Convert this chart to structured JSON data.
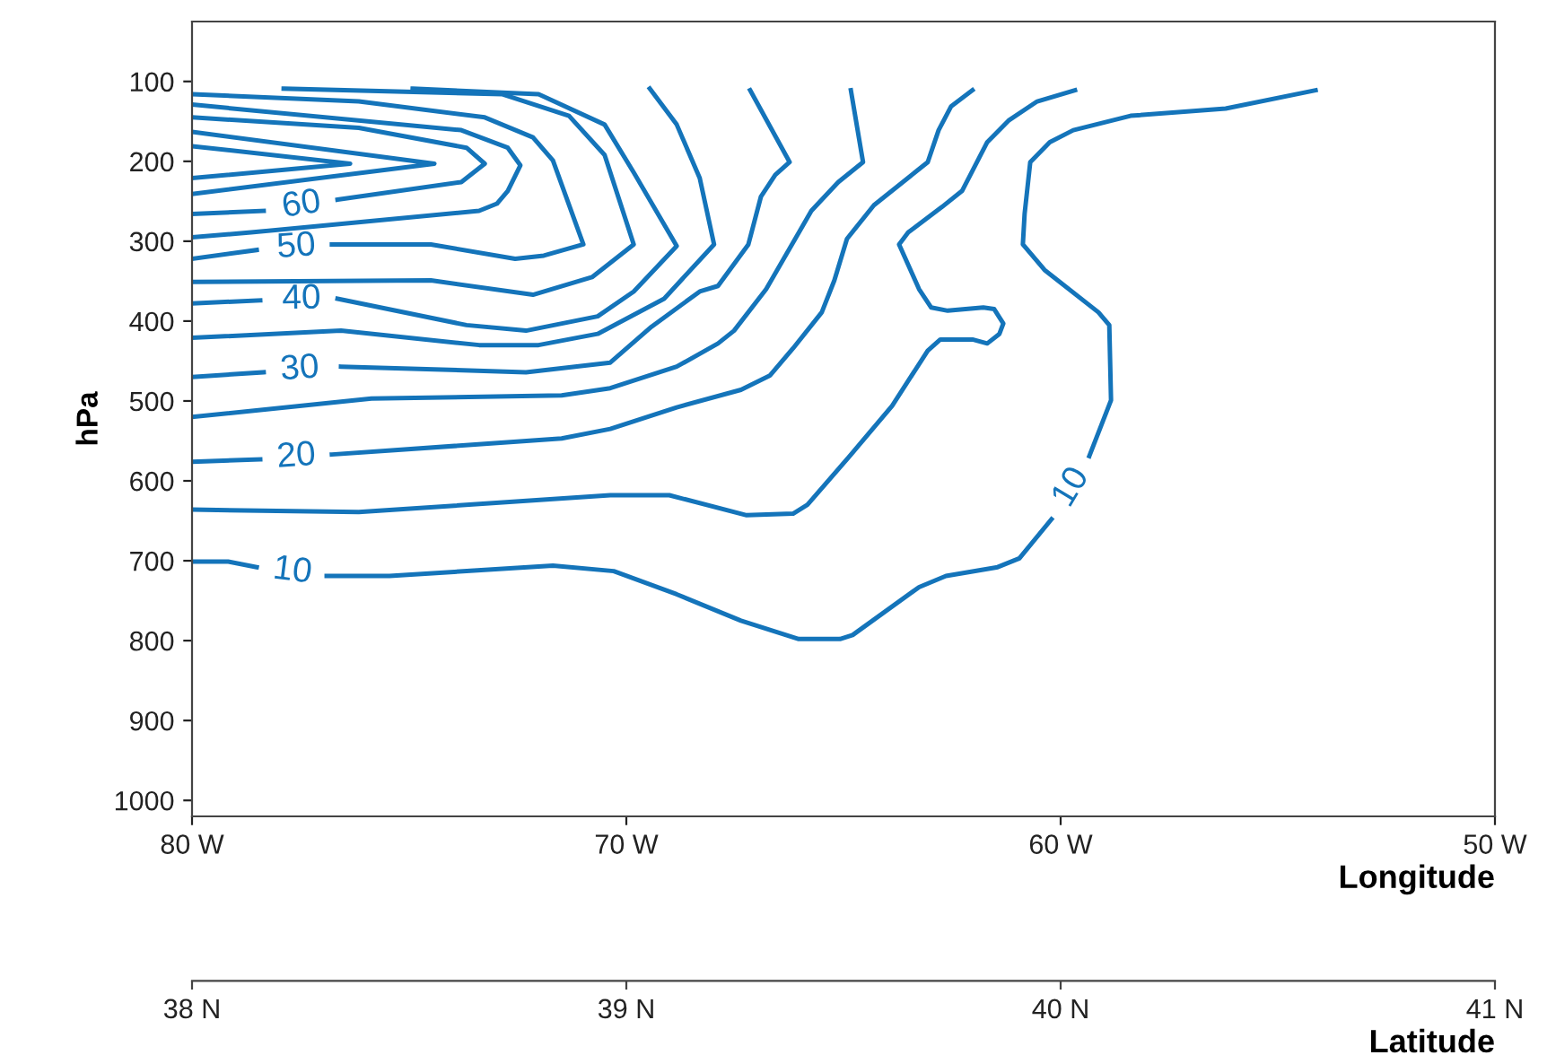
{
  "chart_data": {
    "type": "line",
    "xlabel": "Longitude",
    "ylabel": "hPa",
    "x2label": "Latitude",
    "xlim": [
      80,
      50
    ],
    "xticks": [
      {
        "value": 80,
        "label": "80 W"
      },
      {
        "value": 70,
        "label": "70 W"
      },
      {
        "value": 60,
        "label": "60 W"
      },
      {
        "value": 50,
        "label": "50 W"
      }
    ],
    "x2lim": [
      38,
      41
    ],
    "x2ticks": [
      {
        "value": 38,
        "label": "38 N"
      },
      {
        "value": 39,
        "label": "39 N"
      },
      {
        "value": 40,
        "label": "40 N"
      },
      {
        "value": 41,
        "label": "41 N"
      }
    ],
    "ylim": [
      1020,
      25
    ],
    "yticks": [
      100,
      200,
      300,
      400,
      500,
      600,
      700,
      800,
      900,
      1000
    ],
    "grid": false,
    "marker": "none",
    "line_style": "solid",
    "series": [
      {
        "color": "#1474ba",
        "x": [
          80,
          76.36,
          80
        ],
        "values": [
          181,
          203,
          221
        ]
      },
      {
        "color": "#1474ba",
        "x": [
          80,
          74.42,
          80
        ],
        "values": [
          163,
          203,
          241
        ]
      },
      {
        "color": "#1474ba",
        "x": [
          80,
          76.16,
          73.68,
          73.26,
          73.8,
          76.65,
          77.48,
          78.35,
          80
        ],
        "values": [
          145,
          158,
          183,
          203,
          226,
          248,
          null,
          262,
          266
        ]
      },
      {
        "color": "#1474ba",
        "x": [
          80,
          73.8,
          72.73,
          72.44,
          72.73,
          72.98,
          73.39,
          78.64,
          80
        ],
        "values": [
          129,
          161,
          183,
          205,
          237,
          253,
          262,
          289,
          295
        ]
      },
      {
        "color": "#1474ba",
        "x": [
          80,
          76.16,
          73.26,
          72.15,
          71.69,
          70.99,
          71.9,
          72.56,
          74.5,
          76.78,
          77.6,
          78.51,
          80
        ],
        "values": [
          116,
          125,
          145,
          170,
          199,
          304,
          318,
          322,
          304,
          304,
          null,
          311,
          322
        ]
      },
      {
        "color": "#1474ba",
        "x": [
          77.89,
          72.85,
          71.32,
          70.5,
          69.83,
          70.79,
          72.15,
          74.5,
          80
        ],
        "values": [
          109,
          116,
          143,
          192,
          304,
          345,
          367,
          349,
          351
        ]
      },
      {
        "color": "#1474ba",
        "x": [
          74.92,
          72.02,
          70.5,
          69.83,
          68.84,
          69.83,
          70.66,
          72.31,
          73.68,
          76.65,
          77.48,
          78.43,
          80
        ],
        "values": [
          109,
          116,
          154,
          214,
          306,
          363,
          394,
          412,
          405,
          372,
          null,
          374,
          378
        ]
      },
      {
        "color": "#1474ba",
        "x": [
          69.46,
          68.84,
          68.31,
          67.98,
          69.13,
          70.66,
          72.02,
          73.39,
          76.57,
          80
        ],
        "values": [
          109,
          154,
          221,
          304,
          372,
          416,
          430,
          430,
          412,
          421
        ]
      },
      {
        "color": "#1474ba",
        "x": [
          67.15,
          66.24,
          66.57,
          66.9,
          67.19,
          67.89,
          68.31,
          69.42,
          70.37,
          72.31,
          76.57,
          77.52,
          78.35,
          80
        ],
        "values": [
          111,
          201,
          217,
          244,
          304,
          356,
          363,
          407,
          452,
          464,
          457,
          null,
          464,
          470
        ]
      },
      {
        "color": "#1474ba",
        "x": [
          64.83,
          64.55,
          65.12,
          65.74,
          66.78,
          67.52,
          67.89,
          68.84,
          70.37,
          71.49,
          75.87,
          80
        ],
        "values": [
          111,
          201,
          226,
          262,
          360,
          412,
          428,
          457,
          484,
          493,
          497,
          520
        ]
      },
      {
        "color": "#1474ba",
        "x": [
          62.03,
          62.52,
          62.81,
          63.06,
          64.3,
          64.92,
          65.21,
          65.5,
          66.16,
          66.69,
          67.36,
          68.84,
          70.37,
          71.49,
          76.78,
          77.6,
          78.43,
          80
        ],
        "values": [
          111,
          131,
          161,
          201,
          255,
          297,
          349,
          389,
          434,
          468,
          486,
          508,
          535,
          547,
          567,
          null,
          573,
          576
        ]
      },
      {
        "color": "#1474ba",
        "x": [
          59.67,
          60.54,
          61.2,
          61.69,
          62.27,
          62.73,
          63.51,
          63.72,
          63.26,
          62.98,
          62.6,
          62.19,
          61.78,
          61.53,
          61.32,
          61.41,
          61.69,
          62.03,
          62.77,
          63.06,
          63.88,
          64.92,
          65.83,
          66.16,
          67.23,
          69.01,
          70.37,
          76.16,
          80
        ],
        "values": [
          111,
          125,
          149,
          176,
          237,
          257,
          289,
          304,
          360,
          383,
          387,
          385,
          383,
          385,
          403,
          416,
          428,
          423,
          423,
          437,
          506,
          573,
          630,
          641,
          643,
          618,
          618,
          639,
          636
        ]
      },
      {
        "color": "#1474ba",
        "x": [
          54.13,
          56.2,
          58.39,
          59.71,
          60.25,
          60.7,
          60.83,
          60.87,
          60.37,
          59.13,
          58.88,
          58.84,
          59.34,
          59.75,
          60.21,
          60.95,
          61.45,
          62.64,
          63.26,
          64.79,
          65.08,
          66.03,
          67.36,
          68.84,
          70.29,
          71.69,
          75.45,
          76.9,
          77.69,
          78.51,
          79.17,
          80
        ],
        "values": [
          111,
          134,
          143,
          161,
          176,
          201,
          266,
          304,
          336,
          389,
          405,
          499,
          569,
          null,
          648,
          697,
          708,
          719,
          733,
          793,
          798,
          798,
          775,
          742,
          713,
          706,
          719,
          719,
          null,
          708,
          701,
          701
        ]
      }
    ],
    "annotations": [
      "60",
      "50",
      "40",
      "30",
      "20",
      "10",
      "10"
    ]
  }
}
